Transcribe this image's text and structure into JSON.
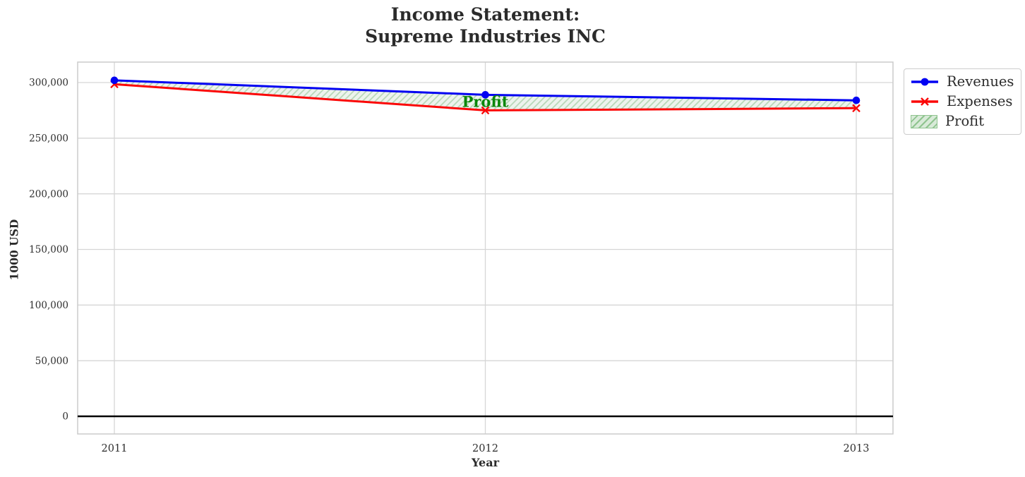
{
  "chart_data": {
    "type": "line",
    "title": "Income Statement:\nSupreme Industries INC",
    "title_lines": [
      "Income Statement:",
      "Supreme Industries INC"
    ],
    "xlabel": "Year",
    "ylabel": "1000 USD",
    "x": [
      2011,
      2012,
      2013
    ],
    "series": [
      {
        "name": "Revenues",
        "color": "#0202f2",
        "marker": "circle",
        "values": [
          302000,
          289000,
          284000
        ]
      },
      {
        "name": "Expenses",
        "color": "#fb0707",
        "marker": "x",
        "values": [
          298500,
          275000,
          277000
        ]
      }
    ],
    "fill_between": {
      "name": "Profit",
      "between": [
        "Expenses",
        "Revenues"
      ],
      "hatch": "/",
      "fill_color": "#edf3ed",
      "hatch_color": "#b9d8b9",
      "legend_fill_color": "#d8ead8",
      "legend_hatch_color": "#8fc48f"
    },
    "annotation": {
      "text": "Profit",
      "x": 2012,
      "y": 283000,
      "color": "#0a870a"
    },
    "xticks": {
      "values": [
        2011,
        2012,
        2013
      ],
      "labels": [
        "2011",
        "2012",
        "2013"
      ]
    },
    "yticks": {
      "values": [
        0,
        50000,
        100000,
        150000,
        200000,
        250000,
        300000
      ],
      "labels": [
        "0",
        "50,000",
        "100,000",
        "150,000",
        "200,000",
        "250,000",
        "300,000"
      ]
    },
    "xlim": [
      2010.9,
      2013.1
    ],
    "ylim": [
      -15900,
      318500
    ],
    "grid": true,
    "zero_line": true,
    "legend": {
      "position": "upper-right-outside",
      "entries": [
        "Revenues",
        "Expenses",
        "Profit"
      ]
    },
    "colors": {
      "grid": "#d6d6d6",
      "spine": "#cbcbcb",
      "tick_text": "#2e2e2e",
      "zero_line": "#000000"
    }
  }
}
